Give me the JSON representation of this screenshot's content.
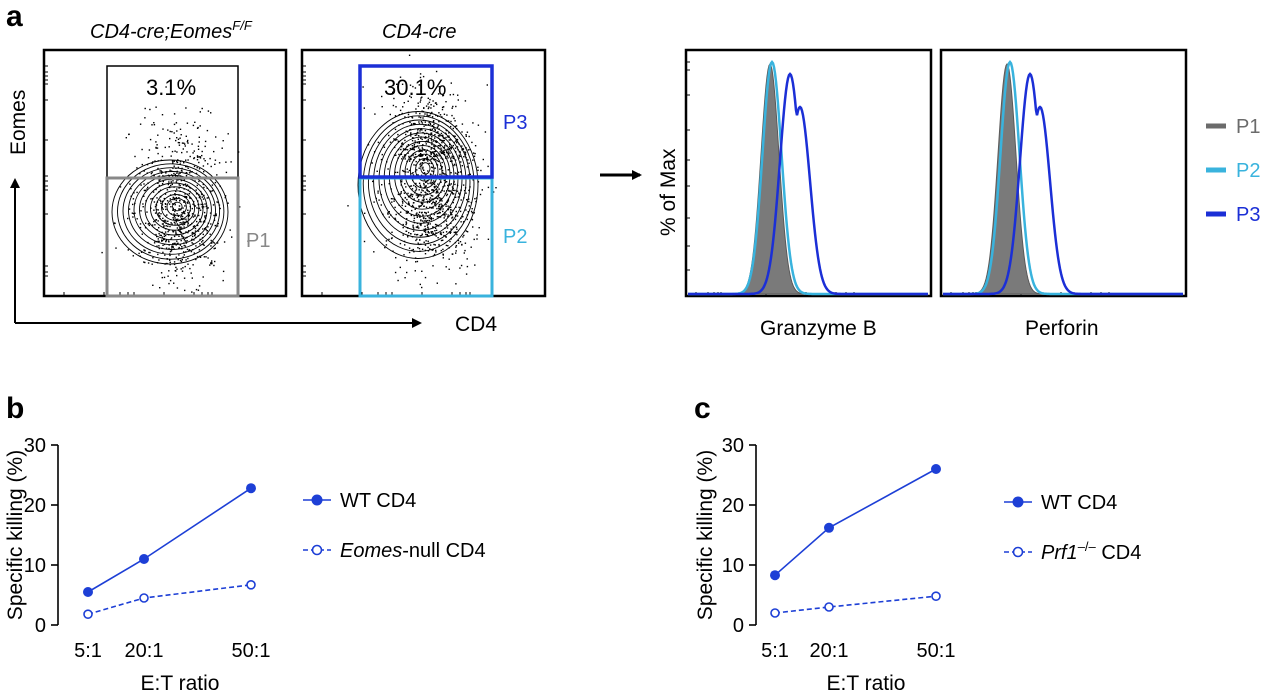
{
  "panels": {
    "a": "a",
    "b": "b",
    "c": "c"
  },
  "flow": {
    "y_axis_label": "Eomes",
    "x_axis_label": "CD4",
    "plots": [
      {
        "title_main": "CD4-cre;Eomes",
        "title_sup": "F/F",
        "percent": "3.1%",
        "gate_label": "P1"
      },
      {
        "title_main": "CD4-cre",
        "title_sup": "",
        "percent": "30.1%",
        "gate_upper_label": "P3",
        "gate_lower_label": "P2"
      }
    ]
  },
  "histograms": {
    "y_axis_label": "% of Max",
    "x_labels": [
      "Granzyme B",
      "Perforin"
    ],
    "legend": [
      {
        "label": "P1",
        "color": "#6b6b6b"
      },
      {
        "label": "P2",
        "color": "#39b3dd"
      },
      {
        "label": "P3",
        "color": "#1b2fd6"
      }
    ]
  },
  "colors": {
    "p1_gray": "#888888",
    "p2_cyan": "#39b3dd",
    "p3_blue": "#1b2fd6",
    "line_blue": "#1d3fd6"
  },
  "chart_data": [
    {
      "type": "line",
      "panel": "b",
      "title": "",
      "xlabel": "E:T ratio",
      "ylabel": "Specific killing (%)",
      "categories": [
        "5:1",
        "20:1",
        "50:1"
      ],
      "x": [
        5,
        20,
        50
      ],
      "ylim": [
        0,
        30
      ],
      "yticks": [
        0,
        10,
        20,
        30
      ],
      "series": [
        {
          "name": "WT CD4",
          "name_ital": "",
          "name_rest": "WT CD4",
          "values": [
            5.5,
            11,
            22.8
          ],
          "style": "solid",
          "marker": "filled"
        },
        {
          "name": "Eomes-null CD4",
          "name_ital": "Eomes",
          "name_rest": "-null CD4",
          "values": [
            1.8,
            4.5,
            6.7
          ],
          "style": "dashed",
          "marker": "open"
        }
      ]
    },
    {
      "type": "line",
      "panel": "c",
      "title": "",
      "xlabel": "E:T ratio",
      "ylabel": "Specific killing (%)",
      "categories": [
        "5:1",
        "20:1",
        "50:1"
      ],
      "x": [
        5,
        20,
        50
      ],
      "ylim": [
        0,
        30
      ],
      "yticks": [
        0,
        10,
        20,
        30
      ],
      "series": [
        {
          "name": "WT CD4",
          "name_ital": "",
          "name_rest": "WT CD4",
          "values": [
            8.3,
            16.2,
            26
          ],
          "style": "solid",
          "marker": "filled"
        },
        {
          "name": "Prf1–/– CD4",
          "name_ital": "Prf1",
          "name_sup": "–/–",
          "name_rest": " CD4",
          "values": [
            2,
            3,
            4.8
          ],
          "style": "dashed",
          "marker": "open"
        }
      ]
    }
  ]
}
